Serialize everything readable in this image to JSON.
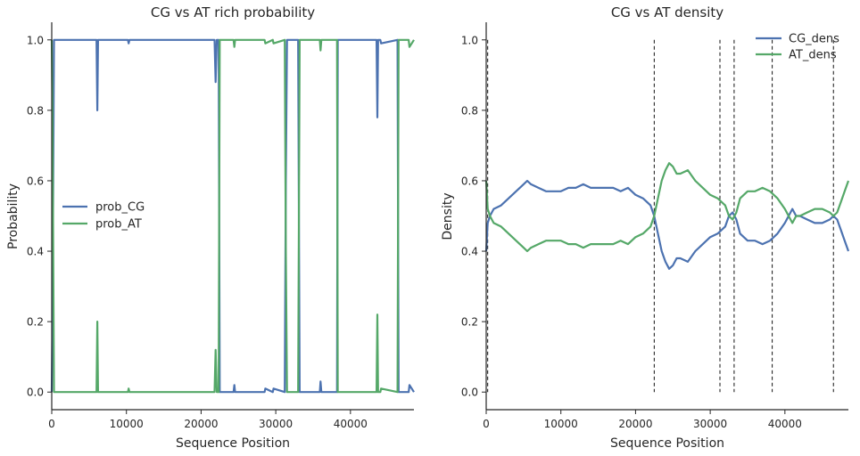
{
  "chart_data": [
    {
      "type": "line",
      "title": "CG vs AT rich probability",
      "xlabel": "Sequence Position",
      "ylabel": "Probability",
      "xlim": [
        0,
        48502
      ],
      "ylim": [
        -0.05,
        1.05
      ],
      "xticks": [
        0,
        10000,
        20000,
        30000,
        40000
      ],
      "yticks": [
        0.0,
        0.2,
        0.4,
        0.6,
        0.8,
        1.0
      ],
      "xtick_labels": [
        "0",
        "10000",
        "20000",
        "30000",
        "40000"
      ],
      "ytick_labels": [
        "0.0",
        "0.2",
        "0.4",
        "0.6",
        "0.8",
        "1.0"
      ],
      "grid": false,
      "legend": "center-left",
      "series": [
        {
          "name": "prob_CG",
          "color": "#4c72b0",
          "x": [
            0,
            100,
            300,
            6000,
            6100,
            6200,
            6300,
            10200,
            10300,
            10400,
            21800,
            21950,
            22100,
            22350,
            22500,
            24350,
            24450,
            24550,
            28500,
            28600,
            29600,
            29700,
            31200,
            31350,
            31500,
            33000,
            33200,
            33400,
            35900,
            36000,
            36100,
            38200,
            38300,
            38450,
            43500,
            43600,
            43700,
            44000,
            44100,
            46300,
            46450,
            46600,
            47800,
            47900,
            48502
          ],
          "values": [
            0.0,
            0.2,
            1.0,
            1.0,
            0.8,
            1.0,
            1.0,
            1.0,
            0.99,
            1.0,
            1.0,
            0.88,
            1.0,
            1.0,
            0.0,
            0.0,
            0.02,
            0.0,
            0.0,
            0.01,
            0.0,
            0.01,
            0.0,
            0.6,
            1.0,
            1.0,
            0.0,
            0.0,
            0.0,
            0.03,
            0.0,
            0.0,
            1.0,
            1.0,
            1.0,
            0.78,
            1.0,
            1.0,
            0.99,
            1.0,
            0.0,
            0.0,
            0.0,
            0.02,
            0.0
          ]
        },
        {
          "name": "prob_AT",
          "color": "#55a868",
          "x": [
            0,
            100,
            300,
            6000,
            6100,
            6200,
            6300,
            10200,
            10300,
            10400,
            21800,
            21950,
            22100,
            22350,
            22500,
            24350,
            24450,
            24550,
            28500,
            28600,
            29600,
            29700,
            31200,
            31350,
            31500,
            33000,
            33200,
            33400,
            35900,
            36000,
            36100,
            38200,
            38300,
            38450,
            43500,
            43600,
            43700,
            44000,
            44100,
            46300,
            46450,
            46600,
            47800,
            47900,
            48502
          ],
          "values": [
            1.0,
            0.8,
            0.0,
            0.0,
            0.2,
            0.0,
            0.0,
            0.0,
            0.01,
            0.0,
            0.0,
            0.12,
            0.0,
            0.0,
            1.0,
            1.0,
            0.98,
            1.0,
            1.0,
            0.99,
            1.0,
            0.99,
            1.0,
            0.4,
            0.0,
            0.0,
            1.0,
            1.0,
            1.0,
            0.97,
            1.0,
            1.0,
            0.0,
            0.0,
            0.0,
            0.22,
            0.0,
            0.0,
            0.01,
            0.0,
            1.0,
            1.0,
            1.0,
            0.98,
            1.0
          ]
        }
      ]
    },
    {
      "type": "line",
      "title": "CG vs AT density",
      "xlabel": "Sequence Position",
      "ylabel": "Density",
      "xlim": [
        0,
        48502
      ],
      "ylim": [
        -0.05,
        1.05
      ],
      "xticks": [
        0,
        10000,
        20000,
        30000,
        40000
      ],
      "yticks": [
        0.0,
        0.2,
        0.4,
        0.6,
        0.8,
        1.0
      ],
      "xtick_labels": [
        "0",
        "10000",
        "20000",
        "30000",
        "40000"
      ],
      "ytick_labels": [
        "0.0",
        "0.2",
        "0.4",
        "0.6",
        "0.8",
        "1.0"
      ],
      "grid": false,
      "legend": "top-right",
      "series": [
        {
          "name": "CG_dens",
          "color": "#4c72b0",
          "x": [
            0,
            200,
            500,
            1000,
            2000,
            3000,
            4000,
            5000,
            5500,
            6000,
            7000,
            8000,
            9000,
            10000,
            11000,
            12000,
            13000,
            14000,
            15000,
            16000,
            17000,
            18000,
            19000,
            20000,
            21000,
            22000,
            22500,
            23000,
            23500,
            24000,
            24500,
            25000,
            25500,
            26000,
            27000,
            28000,
            29000,
            30000,
            31000,
            31500,
            32000,
            32500,
            33000,
            33500,
            34000,
            35000,
            36000,
            37000,
            38000,
            39000,
            40000,
            41000,
            41500,
            42000,
            43000,
            44000,
            45000,
            46000,
            46500,
            47000,
            47500,
            48000,
            48502
          ],
          "values": [
            0.4,
            0.48,
            0.5,
            0.52,
            0.53,
            0.55,
            0.57,
            0.59,
            0.6,
            0.59,
            0.58,
            0.57,
            0.57,
            0.57,
            0.58,
            0.58,
            0.59,
            0.58,
            0.58,
            0.58,
            0.58,
            0.57,
            0.58,
            0.56,
            0.55,
            0.53,
            0.5,
            0.45,
            0.4,
            0.37,
            0.35,
            0.36,
            0.38,
            0.38,
            0.37,
            0.4,
            0.42,
            0.44,
            0.45,
            0.46,
            0.47,
            0.5,
            0.51,
            0.49,
            0.45,
            0.43,
            0.43,
            0.42,
            0.43,
            0.45,
            0.48,
            0.52,
            0.5,
            0.5,
            0.49,
            0.48,
            0.48,
            0.49,
            0.5,
            0.49,
            0.46,
            0.43,
            0.4
          ]
        },
        {
          "name": "AT_dens",
          "color": "#55a868",
          "x": [
            0,
            200,
            500,
            1000,
            2000,
            3000,
            4000,
            5000,
            5500,
            6000,
            7000,
            8000,
            9000,
            10000,
            11000,
            12000,
            13000,
            14000,
            15000,
            16000,
            17000,
            18000,
            19000,
            20000,
            21000,
            22000,
            22500,
            23000,
            23500,
            24000,
            24500,
            25000,
            25500,
            26000,
            27000,
            28000,
            29000,
            30000,
            31000,
            31500,
            32000,
            32500,
            33000,
            33500,
            34000,
            35000,
            36000,
            37000,
            38000,
            39000,
            40000,
            41000,
            41500,
            42000,
            43000,
            44000,
            45000,
            46000,
            46500,
            47000,
            47500,
            48000,
            48502
          ],
          "values": [
            0.6,
            0.52,
            0.5,
            0.48,
            0.47,
            0.45,
            0.43,
            0.41,
            0.4,
            0.41,
            0.42,
            0.43,
            0.43,
            0.43,
            0.42,
            0.42,
            0.41,
            0.42,
            0.42,
            0.42,
            0.42,
            0.43,
            0.42,
            0.44,
            0.45,
            0.47,
            0.5,
            0.55,
            0.6,
            0.63,
            0.65,
            0.64,
            0.62,
            0.62,
            0.63,
            0.6,
            0.58,
            0.56,
            0.55,
            0.54,
            0.53,
            0.5,
            0.49,
            0.51,
            0.55,
            0.57,
            0.57,
            0.58,
            0.57,
            0.55,
            0.52,
            0.48,
            0.5,
            0.5,
            0.51,
            0.52,
            0.52,
            0.51,
            0.5,
            0.51,
            0.54,
            0.57,
            0.6
          ]
        }
      ],
      "vlines": [
        200,
        22500,
        31300,
        33200,
        38300,
        46500
      ]
    }
  ]
}
